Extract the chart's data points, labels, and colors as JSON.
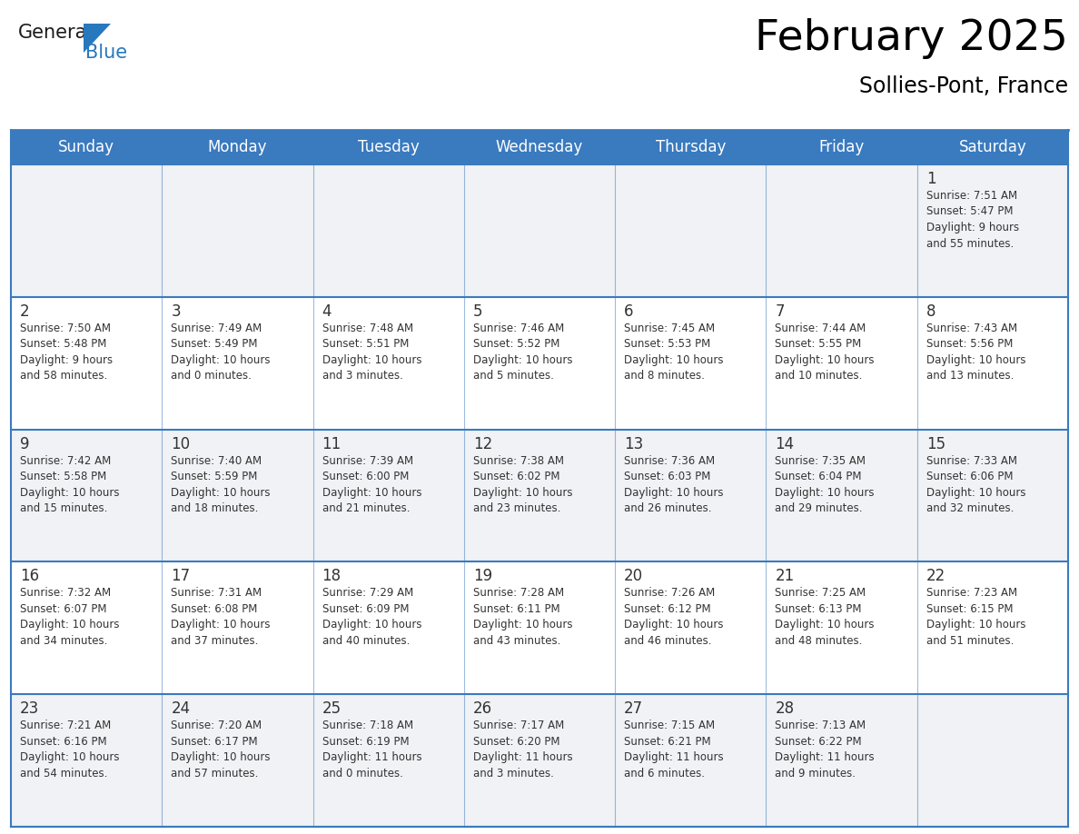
{
  "title": "February 2025",
  "subtitle": "Sollies-Pont, France",
  "header_color": "#3a7abf",
  "header_text_color": "#FFFFFF",
  "cell_bg_color": "#f0f2f5",
  "cell_bg_alt": "#ffffff",
  "border_color": "#3a7abf",
  "day_num_color": "#333333",
  "text_color": "#333333",
  "days_of_week": [
    "Sunday",
    "Monday",
    "Tuesday",
    "Wednesday",
    "Thursday",
    "Friday",
    "Saturday"
  ],
  "weeks": [
    [
      {
        "day": null,
        "text": ""
      },
      {
        "day": null,
        "text": ""
      },
      {
        "day": null,
        "text": ""
      },
      {
        "day": null,
        "text": ""
      },
      {
        "day": null,
        "text": ""
      },
      {
        "day": null,
        "text": ""
      },
      {
        "day": 1,
        "text": "Sunrise: 7:51 AM\nSunset: 5:47 PM\nDaylight: 9 hours\nand 55 minutes."
      }
    ],
    [
      {
        "day": 2,
        "text": "Sunrise: 7:50 AM\nSunset: 5:48 PM\nDaylight: 9 hours\nand 58 minutes."
      },
      {
        "day": 3,
        "text": "Sunrise: 7:49 AM\nSunset: 5:49 PM\nDaylight: 10 hours\nand 0 minutes."
      },
      {
        "day": 4,
        "text": "Sunrise: 7:48 AM\nSunset: 5:51 PM\nDaylight: 10 hours\nand 3 minutes."
      },
      {
        "day": 5,
        "text": "Sunrise: 7:46 AM\nSunset: 5:52 PM\nDaylight: 10 hours\nand 5 minutes."
      },
      {
        "day": 6,
        "text": "Sunrise: 7:45 AM\nSunset: 5:53 PM\nDaylight: 10 hours\nand 8 minutes."
      },
      {
        "day": 7,
        "text": "Sunrise: 7:44 AM\nSunset: 5:55 PM\nDaylight: 10 hours\nand 10 minutes."
      },
      {
        "day": 8,
        "text": "Sunrise: 7:43 AM\nSunset: 5:56 PM\nDaylight: 10 hours\nand 13 minutes."
      }
    ],
    [
      {
        "day": 9,
        "text": "Sunrise: 7:42 AM\nSunset: 5:58 PM\nDaylight: 10 hours\nand 15 minutes."
      },
      {
        "day": 10,
        "text": "Sunrise: 7:40 AM\nSunset: 5:59 PM\nDaylight: 10 hours\nand 18 minutes."
      },
      {
        "day": 11,
        "text": "Sunrise: 7:39 AM\nSunset: 6:00 PM\nDaylight: 10 hours\nand 21 minutes."
      },
      {
        "day": 12,
        "text": "Sunrise: 7:38 AM\nSunset: 6:02 PM\nDaylight: 10 hours\nand 23 minutes."
      },
      {
        "day": 13,
        "text": "Sunrise: 7:36 AM\nSunset: 6:03 PM\nDaylight: 10 hours\nand 26 minutes."
      },
      {
        "day": 14,
        "text": "Sunrise: 7:35 AM\nSunset: 6:04 PM\nDaylight: 10 hours\nand 29 minutes."
      },
      {
        "day": 15,
        "text": "Sunrise: 7:33 AM\nSunset: 6:06 PM\nDaylight: 10 hours\nand 32 minutes."
      }
    ],
    [
      {
        "day": 16,
        "text": "Sunrise: 7:32 AM\nSunset: 6:07 PM\nDaylight: 10 hours\nand 34 minutes."
      },
      {
        "day": 17,
        "text": "Sunrise: 7:31 AM\nSunset: 6:08 PM\nDaylight: 10 hours\nand 37 minutes."
      },
      {
        "day": 18,
        "text": "Sunrise: 7:29 AM\nSunset: 6:09 PM\nDaylight: 10 hours\nand 40 minutes."
      },
      {
        "day": 19,
        "text": "Sunrise: 7:28 AM\nSunset: 6:11 PM\nDaylight: 10 hours\nand 43 minutes."
      },
      {
        "day": 20,
        "text": "Sunrise: 7:26 AM\nSunset: 6:12 PM\nDaylight: 10 hours\nand 46 minutes."
      },
      {
        "day": 21,
        "text": "Sunrise: 7:25 AM\nSunset: 6:13 PM\nDaylight: 10 hours\nand 48 minutes."
      },
      {
        "day": 22,
        "text": "Sunrise: 7:23 AM\nSunset: 6:15 PM\nDaylight: 10 hours\nand 51 minutes."
      }
    ],
    [
      {
        "day": 23,
        "text": "Sunrise: 7:21 AM\nSunset: 6:16 PM\nDaylight: 10 hours\nand 54 minutes."
      },
      {
        "day": 24,
        "text": "Sunrise: 7:20 AM\nSunset: 6:17 PM\nDaylight: 10 hours\nand 57 minutes."
      },
      {
        "day": 25,
        "text": "Sunrise: 7:18 AM\nSunset: 6:19 PM\nDaylight: 11 hours\nand 0 minutes."
      },
      {
        "day": 26,
        "text": "Sunrise: 7:17 AM\nSunset: 6:20 PM\nDaylight: 11 hours\nand 3 minutes."
      },
      {
        "day": 27,
        "text": "Sunrise: 7:15 AM\nSunset: 6:21 PM\nDaylight: 11 hours\nand 6 minutes."
      },
      {
        "day": 28,
        "text": "Sunrise: 7:13 AM\nSunset: 6:22 PM\nDaylight: 11 hours\nand 9 minutes."
      },
      {
        "day": null,
        "text": ""
      }
    ]
  ],
  "logo_general_color": "#1a1a1a",
  "logo_blue_color": "#2878BE",
  "logo_triangle_color": "#2878BE",
  "fig_width": 11.88,
  "fig_height": 9.18,
  "dpi": 100
}
